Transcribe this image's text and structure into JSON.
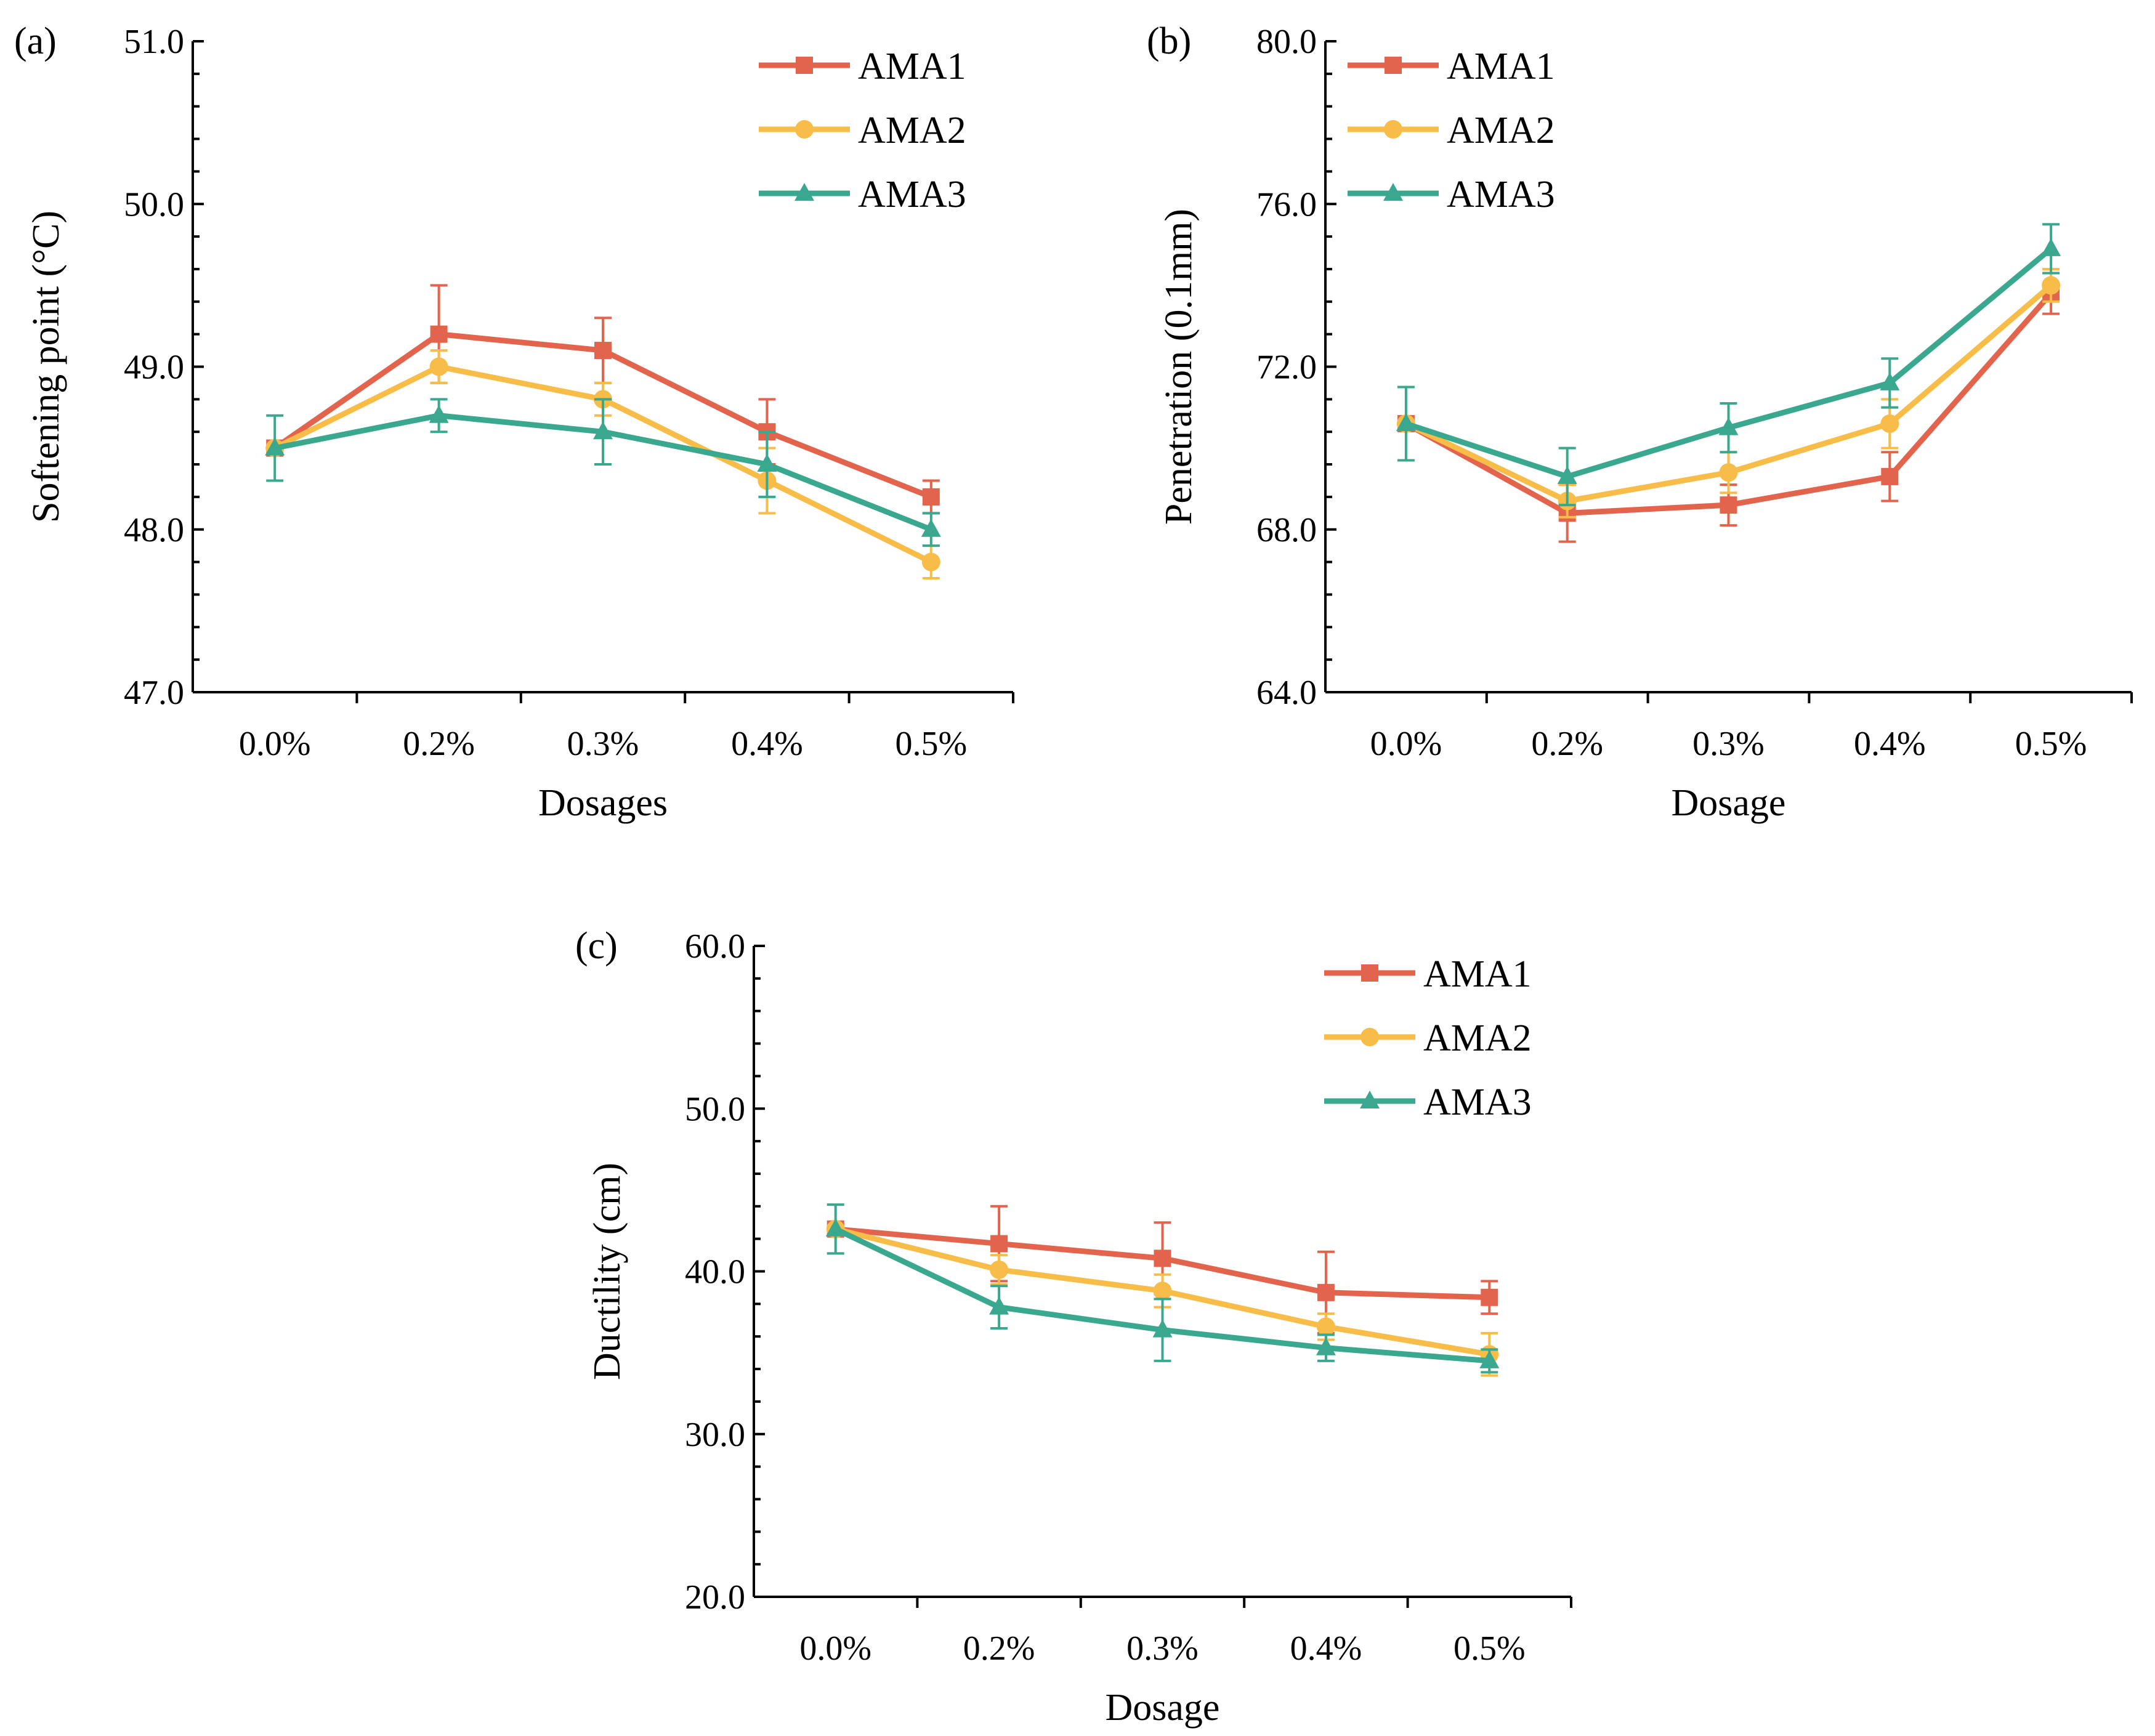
{
  "colors": {
    "AMA1": "#e3644c",
    "AMA2": "#f8bd48",
    "AMA3": "#3aa88e",
    "axis": "#000000"
  },
  "chart_data": [
    {
      "id": "a",
      "type": "line",
      "panel_label": "(a)",
      "title": "",
      "xlabel": "Dosages",
      "ylabel": "Softening point (°C)",
      "categories": [
        "0.0%",
        "0.2%",
        "0.3%",
        "0.4%",
        "0.5%"
      ],
      "ylim": [
        47.0,
        51.0
      ],
      "major_ticks": [
        47.0,
        48.0,
        49.0,
        50.0,
        51.0
      ],
      "tick_labels": [
        "47.0",
        "48.0",
        "49.0",
        "50.0",
        "51.0"
      ],
      "minor_step": 0.2,
      "legend_position": "top-right",
      "series": [
        {
          "name": "AMA1",
          "marker": "square",
          "values": [
            48.5,
            49.2,
            49.1,
            48.6,
            48.2
          ],
          "errors": [
            0.0,
            0.3,
            0.2,
            0.2,
            0.1
          ]
        },
        {
          "name": "AMA2",
          "marker": "circle",
          "values": [
            48.5,
            49.0,
            48.8,
            48.3,
            47.8
          ],
          "errors": [
            0.0,
            0.1,
            0.1,
            0.2,
            0.1
          ]
        },
        {
          "name": "AMA3",
          "marker": "triangle",
          "values": [
            48.5,
            48.7,
            48.6,
            48.4,
            48.0
          ],
          "errors": [
            0.2,
            0.1,
            0.2,
            0.2,
            0.1
          ]
        }
      ]
    },
    {
      "id": "b",
      "type": "line",
      "panel_label": "(b)",
      "title": "",
      "xlabel": "Dosage",
      "ylabel": "Penetration (0.1mm)",
      "categories": [
        "0.0%",
        "0.2%",
        "0.3%",
        "0.4%",
        "0.5%"
      ],
      "ylim": [
        64.0,
        80.0
      ],
      "major_ticks": [
        64.0,
        68.0,
        72.0,
        76.0,
        80.0
      ],
      "tick_labels": [
        "64.0",
        "68.0",
        "72.0",
        "76.0",
        "80.0"
      ],
      "minor_step": 0.8,
      "legend_position": "top-left",
      "series": [
        {
          "name": "AMA1",
          "marker": "square",
          "values": [
            70.6,
            68.4,
            68.6,
            69.3,
            73.8
          ],
          "errors": [
            0.0,
            0.7,
            0.5,
            0.6,
            0.5
          ]
        },
        {
          "name": "AMA2",
          "marker": "circle",
          "values": [
            70.6,
            68.7,
            69.4,
            70.6,
            74.0
          ],
          "errors": [
            0.0,
            0.4,
            0.5,
            0.6,
            0.4
          ]
        },
        {
          "name": "AMA3",
          "marker": "triangle",
          "values": [
            70.6,
            69.3,
            70.5,
            71.6,
            74.9
          ],
          "errors": [
            0.9,
            0.7,
            0.6,
            0.6,
            0.6
          ]
        }
      ]
    },
    {
      "id": "c",
      "type": "line",
      "panel_label": "(c)",
      "title": "",
      "xlabel": "Dosage",
      "ylabel": "Ductility (cm)",
      "categories": [
        "0.0%",
        "0.2%",
        "0.3%",
        "0.4%",
        "0.5%"
      ],
      "ylim": [
        20.0,
        60.0
      ],
      "major_ticks": [
        20.0,
        30.0,
        40.0,
        50.0,
        60.0
      ],
      "tick_labels": [
        "20.0",
        "30.0",
        "40.0",
        "50.0",
        "60.0"
      ],
      "minor_step": 2.0,
      "legend_position": "top-right",
      "series": [
        {
          "name": "AMA1",
          "marker": "square",
          "values": [
            42.6,
            41.7,
            40.8,
            38.7,
            38.4
          ],
          "errors": [
            0.0,
            2.3,
            2.2,
            2.5,
            1.0
          ]
        },
        {
          "name": "AMA2",
          "marker": "circle",
          "values": [
            42.6,
            40.1,
            38.8,
            36.6,
            34.9
          ],
          "errors": [
            0.0,
            0.9,
            1.0,
            0.8,
            1.3
          ]
        },
        {
          "name": "AMA3",
          "marker": "triangle",
          "values": [
            42.6,
            37.8,
            36.4,
            35.3,
            34.5
          ],
          "errors": [
            1.5,
            1.3,
            1.9,
            0.8,
            0.7
          ]
        }
      ]
    }
  ]
}
